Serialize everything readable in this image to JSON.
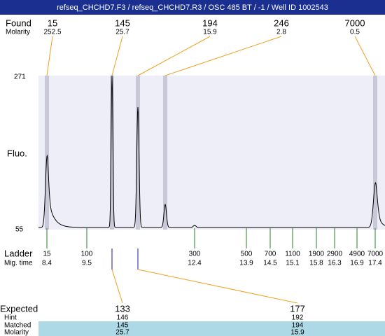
{
  "header": {
    "title": "refseq_CHCHD7.F3 / refseq_CHCHD7.R3 / OSC 485 BT / -1 / Well ID 1002543"
  },
  "found": {
    "label": "Found",
    "molarity_label": "Molarity",
    "sizes": [
      15,
      145,
      194,
      246,
      7000
    ],
    "molarities": [
      252.5,
      25.7,
      15.9,
      2.8,
      0.5
    ]
  },
  "y_axis": {
    "label": "Fluo.",
    "top": 271,
    "bottom": 55
  },
  "ladder": {
    "label": "Ladder",
    "mig_label": "Mig. time",
    "sizes": [
      15,
      100,
      300,
      500,
      700,
      1100,
      1900,
      2900,
      4900,
      7000
    ],
    "mig_times": [
      8.4,
      9.5,
      12.4,
      13.9,
      14.5,
      15.1,
      15.8,
      16.3,
      16.9,
      17.4
    ]
  },
  "table": {
    "row_labels": [
      "Expected",
      "Hint",
      "Matched",
      "Molarity"
    ],
    "columns": [
      [
        133,
        146,
        145,
        25.7
      ],
      [
        177,
        192,
        194,
        15.9
      ]
    ]
  }
}
